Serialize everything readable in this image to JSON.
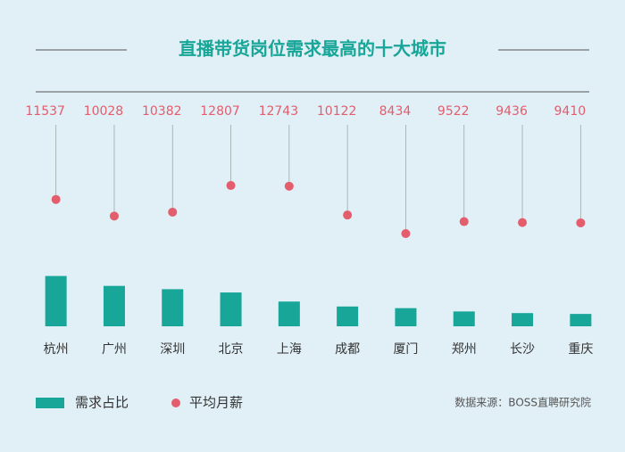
{
  "chart_data": {
    "type": "bar",
    "title": "直播带货岗位需求最高的十大城市",
    "source": "数据来源：BOSS直聘研究院",
    "categories": [
      "杭州",
      "广州",
      "深圳",
      "北京",
      "上海",
      "成都",
      "厦门",
      "郑州",
      "长沙",
      "重庆"
    ],
    "series": [
      {
        "name": "需求占比",
        "color": "#17a697",
        "values": [
          6.1,
          4.9,
          4.5,
          4.1,
          3.0,
          2.4,
          2.2,
          1.8,
          1.6,
          1.5
        ]
      },
      {
        "name": "平均月薪",
        "color": "#e35d6d",
        "axis": "y2",
        "marker": "dot",
        "values": [
          11537,
          10028,
          10382,
          12807,
          12743,
          10122,
          8434,
          9522,
          9436,
          9410
        ]
      }
    ],
    "ylim": [
      0,
      20
    ],
    "y2lim": [
      0,
      15000
    ]
  }
}
